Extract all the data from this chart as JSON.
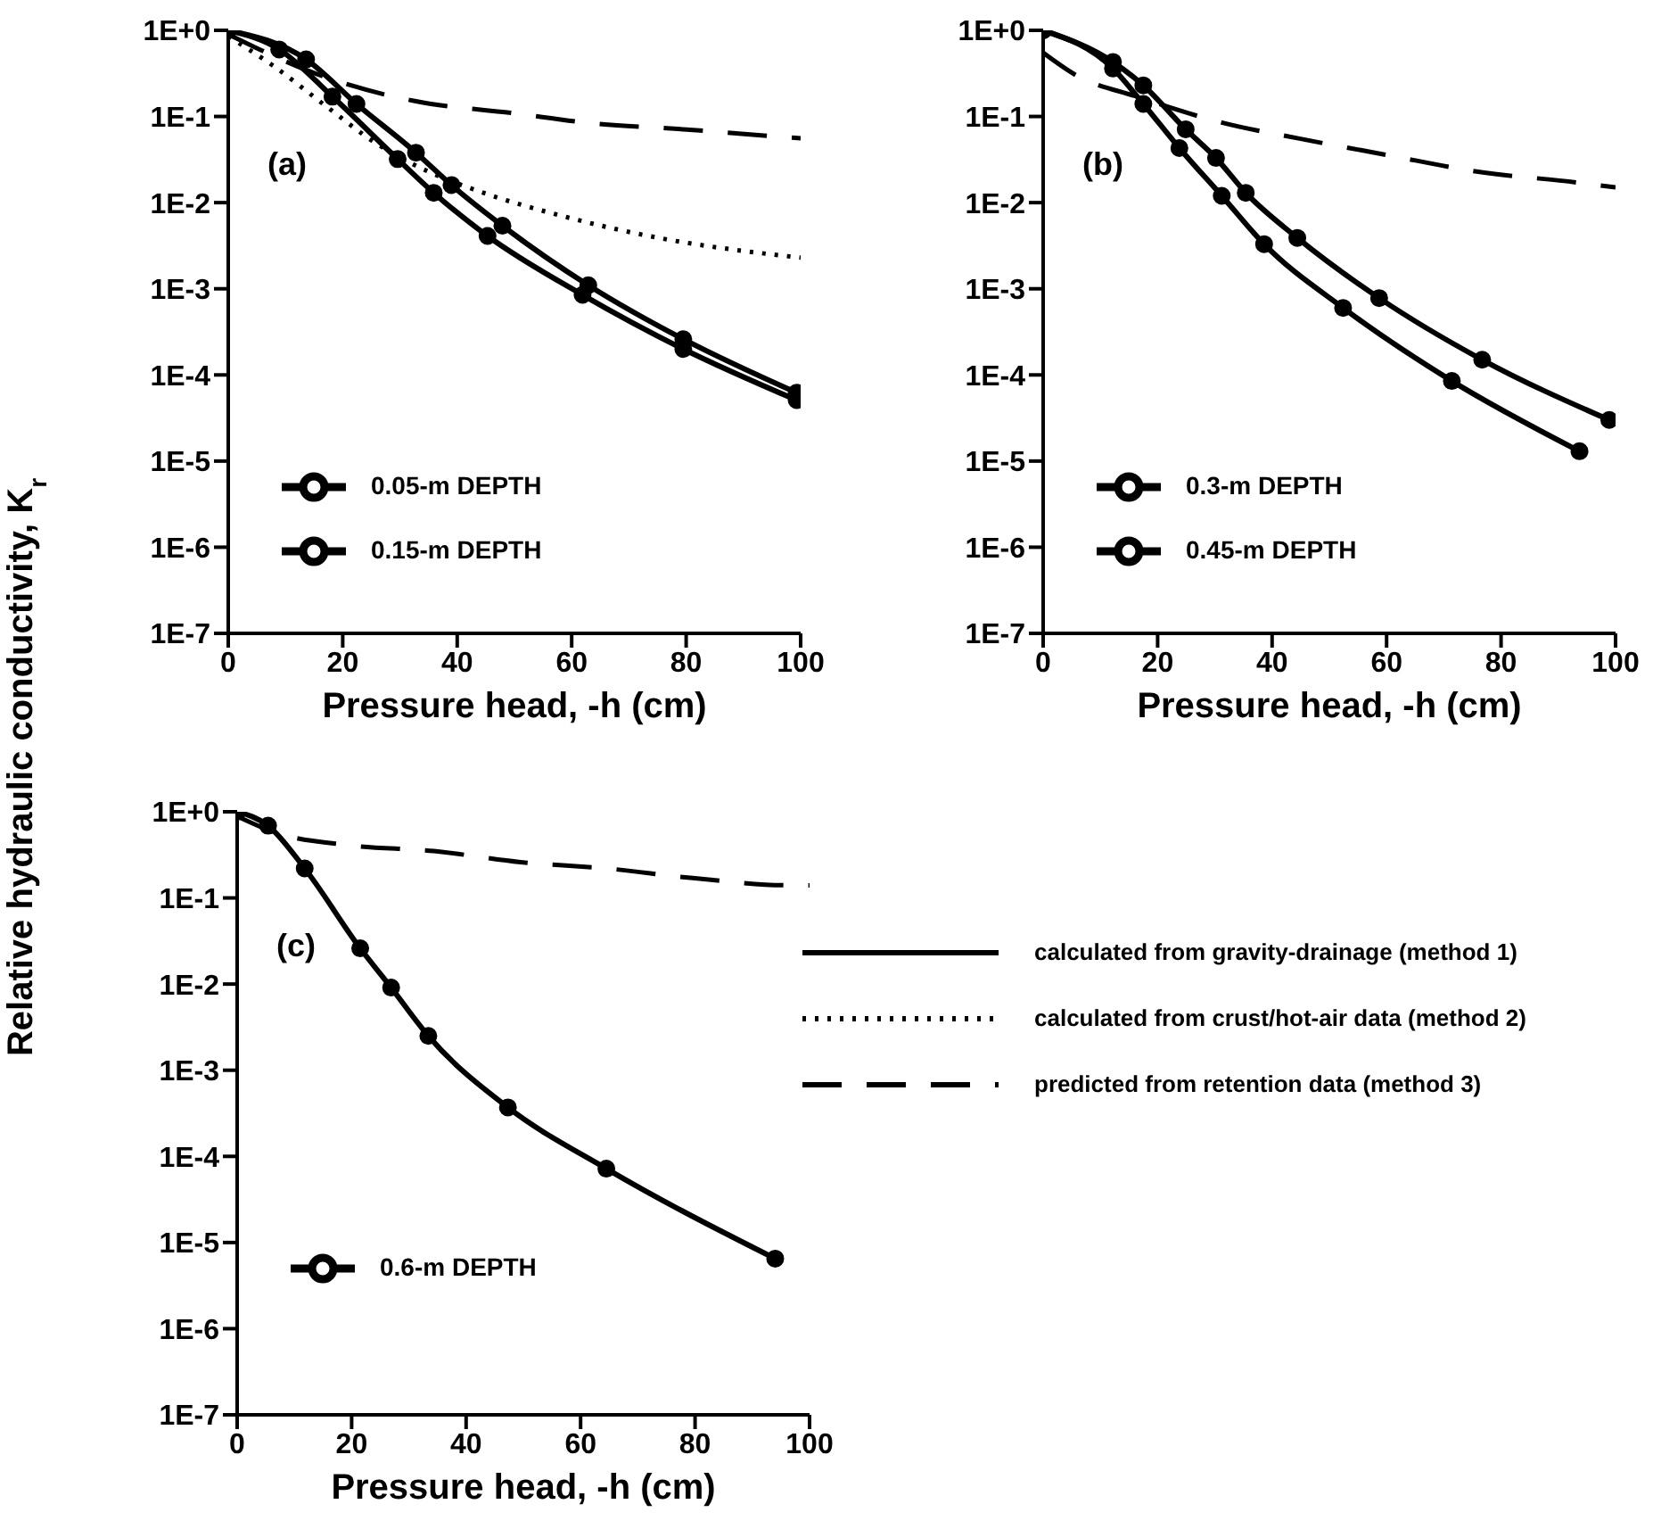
{
  "chart_data": [
    {
      "type": "line",
      "xlabel": "Pressure head, -h (cm)",
      "ylabel": "Relative hydraulic conductivity, K$_{r}$",
      "annotations": [
        "(a)"
      ],
      "xlim": [
        0,
        100
      ],
      "xticks": [
        0,
        20,
        40,
        60,
        80,
        100
      ],
      "ylim": [
        1e-07,
        1
      ],
      "yticks": [
        {
          "value": 1,
          "label": "1E+0"
        },
        {
          "value": 0.1,
          "label": "1E-1"
        },
        {
          "value": 0.01,
          "label": "1E-2"
        },
        {
          "value": 0.001,
          "label": "1E-3"
        },
        {
          "value": 0.0001,
          "label": "1E-4"
        },
        {
          "value": 1e-05,
          "label": "1E-5"
        },
        {
          "value": 1e-06,
          "label": "1E-6"
        },
        {
          "value": 1e-07,
          "label": "1E-7"
        }
      ],
      "log": "y",
      "legend": "bottom left",
      "series": [
        {
          "name": "0.05-m DEPTH",
          "color": "#000000",
          "line_style": "solid",
          "marker": "circle",
          "x": [
            0,
            13.6,
            22.4,
            32.8,
            39,
            47.9,
            62.9,
            79.5,
            99.3
          ],
          "values": [
            1,
            0.46,
            0.14,
            0.038,
            0.016,
            0.0054,
            0.0011,
            0.00026,
            6.2e-05
          ]
        },
        {
          "name": "0.15-m DEPTH",
          "color": "#000000",
          "line_style": "solid",
          "marker": "circle",
          "x": [
            0,
            8.9,
            18.2,
            29.6,
            35.9,
            45.3,
            61.9,
            79.5,
            99.3
          ],
          "values": [
            1,
            0.6,
            0.17,
            0.032,
            0.013,
            0.0041,
            0.00085,
            0.0002,
            5.1e-05
          ]
        },
        {
          "color": "#000000",
          "line_style": "dotted",
          "marker": "none",
          "x": [
            0,
            7.8,
            17.2,
            25.6,
            34.9,
            43.2,
            58.7,
            74.3,
            95.1,
            100
          ],
          "values": [
            0.85,
            0.39,
            0.13,
            0.05,
            0.023,
            0.014,
            0.0069,
            0.004,
            0.0025,
            0.0023
          ]
        },
        {
          "color": "#000000",
          "line_style": "dashed",
          "marker": "none",
          "x": [
            0,
            16.1,
            32.8,
            49.4,
            64,
            79.5,
            95.1,
            100
          ],
          "values": [
            0.9,
            0.3,
            0.15,
            0.11,
            0.083,
            0.071,
            0.059,
            0.056
          ]
        }
      ]
    },
    {
      "type": "line",
      "xlabel": "Pressure head, -h (cm)",
      "annotations": [
        "(b)"
      ],
      "xlim": [
        0,
        100
      ],
      "xticks": [
        0,
        20,
        40,
        60,
        80,
        100
      ],
      "ylim": [
        1e-07,
        1
      ],
      "yticks": [
        {
          "value": 1,
          "label": "1E+0"
        },
        {
          "value": 0.1,
          "label": "1E-1"
        },
        {
          "value": 0.01,
          "label": "1E-2"
        },
        {
          "value": 0.001,
          "label": "1E-3"
        },
        {
          "value": 0.0001,
          "label": "1E-4"
        },
        {
          "value": 1e-05,
          "label": "1E-5"
        },
        {
          "value": 1e-06,
          "label": "1E-6"
        },
        {
          "value": 1e-07,
          "label": "1E-7"
        }
      ],
      "log": "y",
      "legend": "bottom left",
      "series": [
        {
          "name": "0.3-m DEPTH",
          "color": "#000000",
          "line_style": "solid",
          "marker": "circle",
          "x": [
            0,
            12.2,
            17.5,
            24.9,
            30.2,
            35.4,
            44.4,
            58.7,
            76.7,
            98.9
          ],
          "values": [
            1,
            0.43,
            0.23,
            0.071,
            0.033,
            0.013,
            0.0039,
            0.00078,
            0.00015,
            3e-05
          ]
        },
        {
          "name": "0.45-m DEPTH",
          "color": "#000000",
          "line_style": "solid",
          "marker": "circle",
          "x": [
            0,
            12.2,
            17.5,
            23.8,
            31.2,
            38.6,
            52.4,
            71.4,
            93.7
          ],
          "values": [
            1,
            0.36,
            0.14,
            0.043,
            0.012,
            0.0033,
            0.0006,
            8.5e-05,
            1.3e-05
          ]
        },
        {
          "color": "#000000",
          "line_style": "dashed",
          "marker": "none",
          "x": [
            0,
            5.8,
            16.4,
            31.2,
            45,
            59.8,
            75.7,
            93.7,
            100
          ],
          "values": [
            0.55,
            0.3,
            0.17,
            0.085,
            0.055,
            0.036,
            0.023,
            0.017,
            0.015
          ]
        }
      ]
    },
    {
      "type": "line",
      "xlabel": "Pressure head, -h (cm)",
      "annotations": [
        "(c)"
      ],
      "xlim": [
        0,
        100
      ],
      "xticks": [
        0,
        20,
        40,
        60,
        80,
        100
      ],
      "ylim": [
        1e-07,
        1
      ],
      "yticks": [
        {
          "value": 1,
          "label": "1E+0"
        },
        {
          "value": 0.1,
          "label": "1E-1"
        },
        {
          "value": 0.01,
          "label": "1E-2"
        },
        {
          "value": 0.001,
          "label": "1E-3"
        },
        {
          "value": 0.0001,
          "label": "1E-4"
        },
        {
          "value": 1e-05,
          "label": "1E-5"
        },
        {
          "value": 1e-06,
          "label": "1E-6"
        },
        {
          "value": 1e-07,
          "label": "1E-7"
        }
      ],
      "log": "y",
      "legend": "bottom left",
      "series": [
        {
          "name": "0.6-m DEPTH",
          "color": "#000000",
          "line_style": "solid",
          "marker": "circle",
          "x": [
            0,
            5.4,
            11.8,
            21.5,
            26.9,
            33.4,
            47.3,
            64.5,
            94
          ],
          "values": [
            1,
            0.69,
            0.22,
            0.026,
            0.0091,
            0.0025,
            0.00037,
            7.2e-05,
            6.5e-06
          ]
        },
        {
          "color": "#000000",
          "line_style": "dashed",
          "marker": "none",
          "x": [
            0,
            6.5,
            19.4,
            34.4,
            49.5,
            64.5,
            79.6,
            96.8,
            100
          ],
          "values": [
            0.89,
            0.58,
            0.41,
            0.35,
            0.26,
            0.22,
            0.17,
            0.14,
            0.14
          ]
        }
      ]
    },
    {
      "type": "other",
      "annotations": [
        "calculated from gravity-drainage (method 1)",
        "calculated from crust/hot-air data (method 2)",
        "predicted from retention data (method 3)"
      ]
    }
  ]
}
